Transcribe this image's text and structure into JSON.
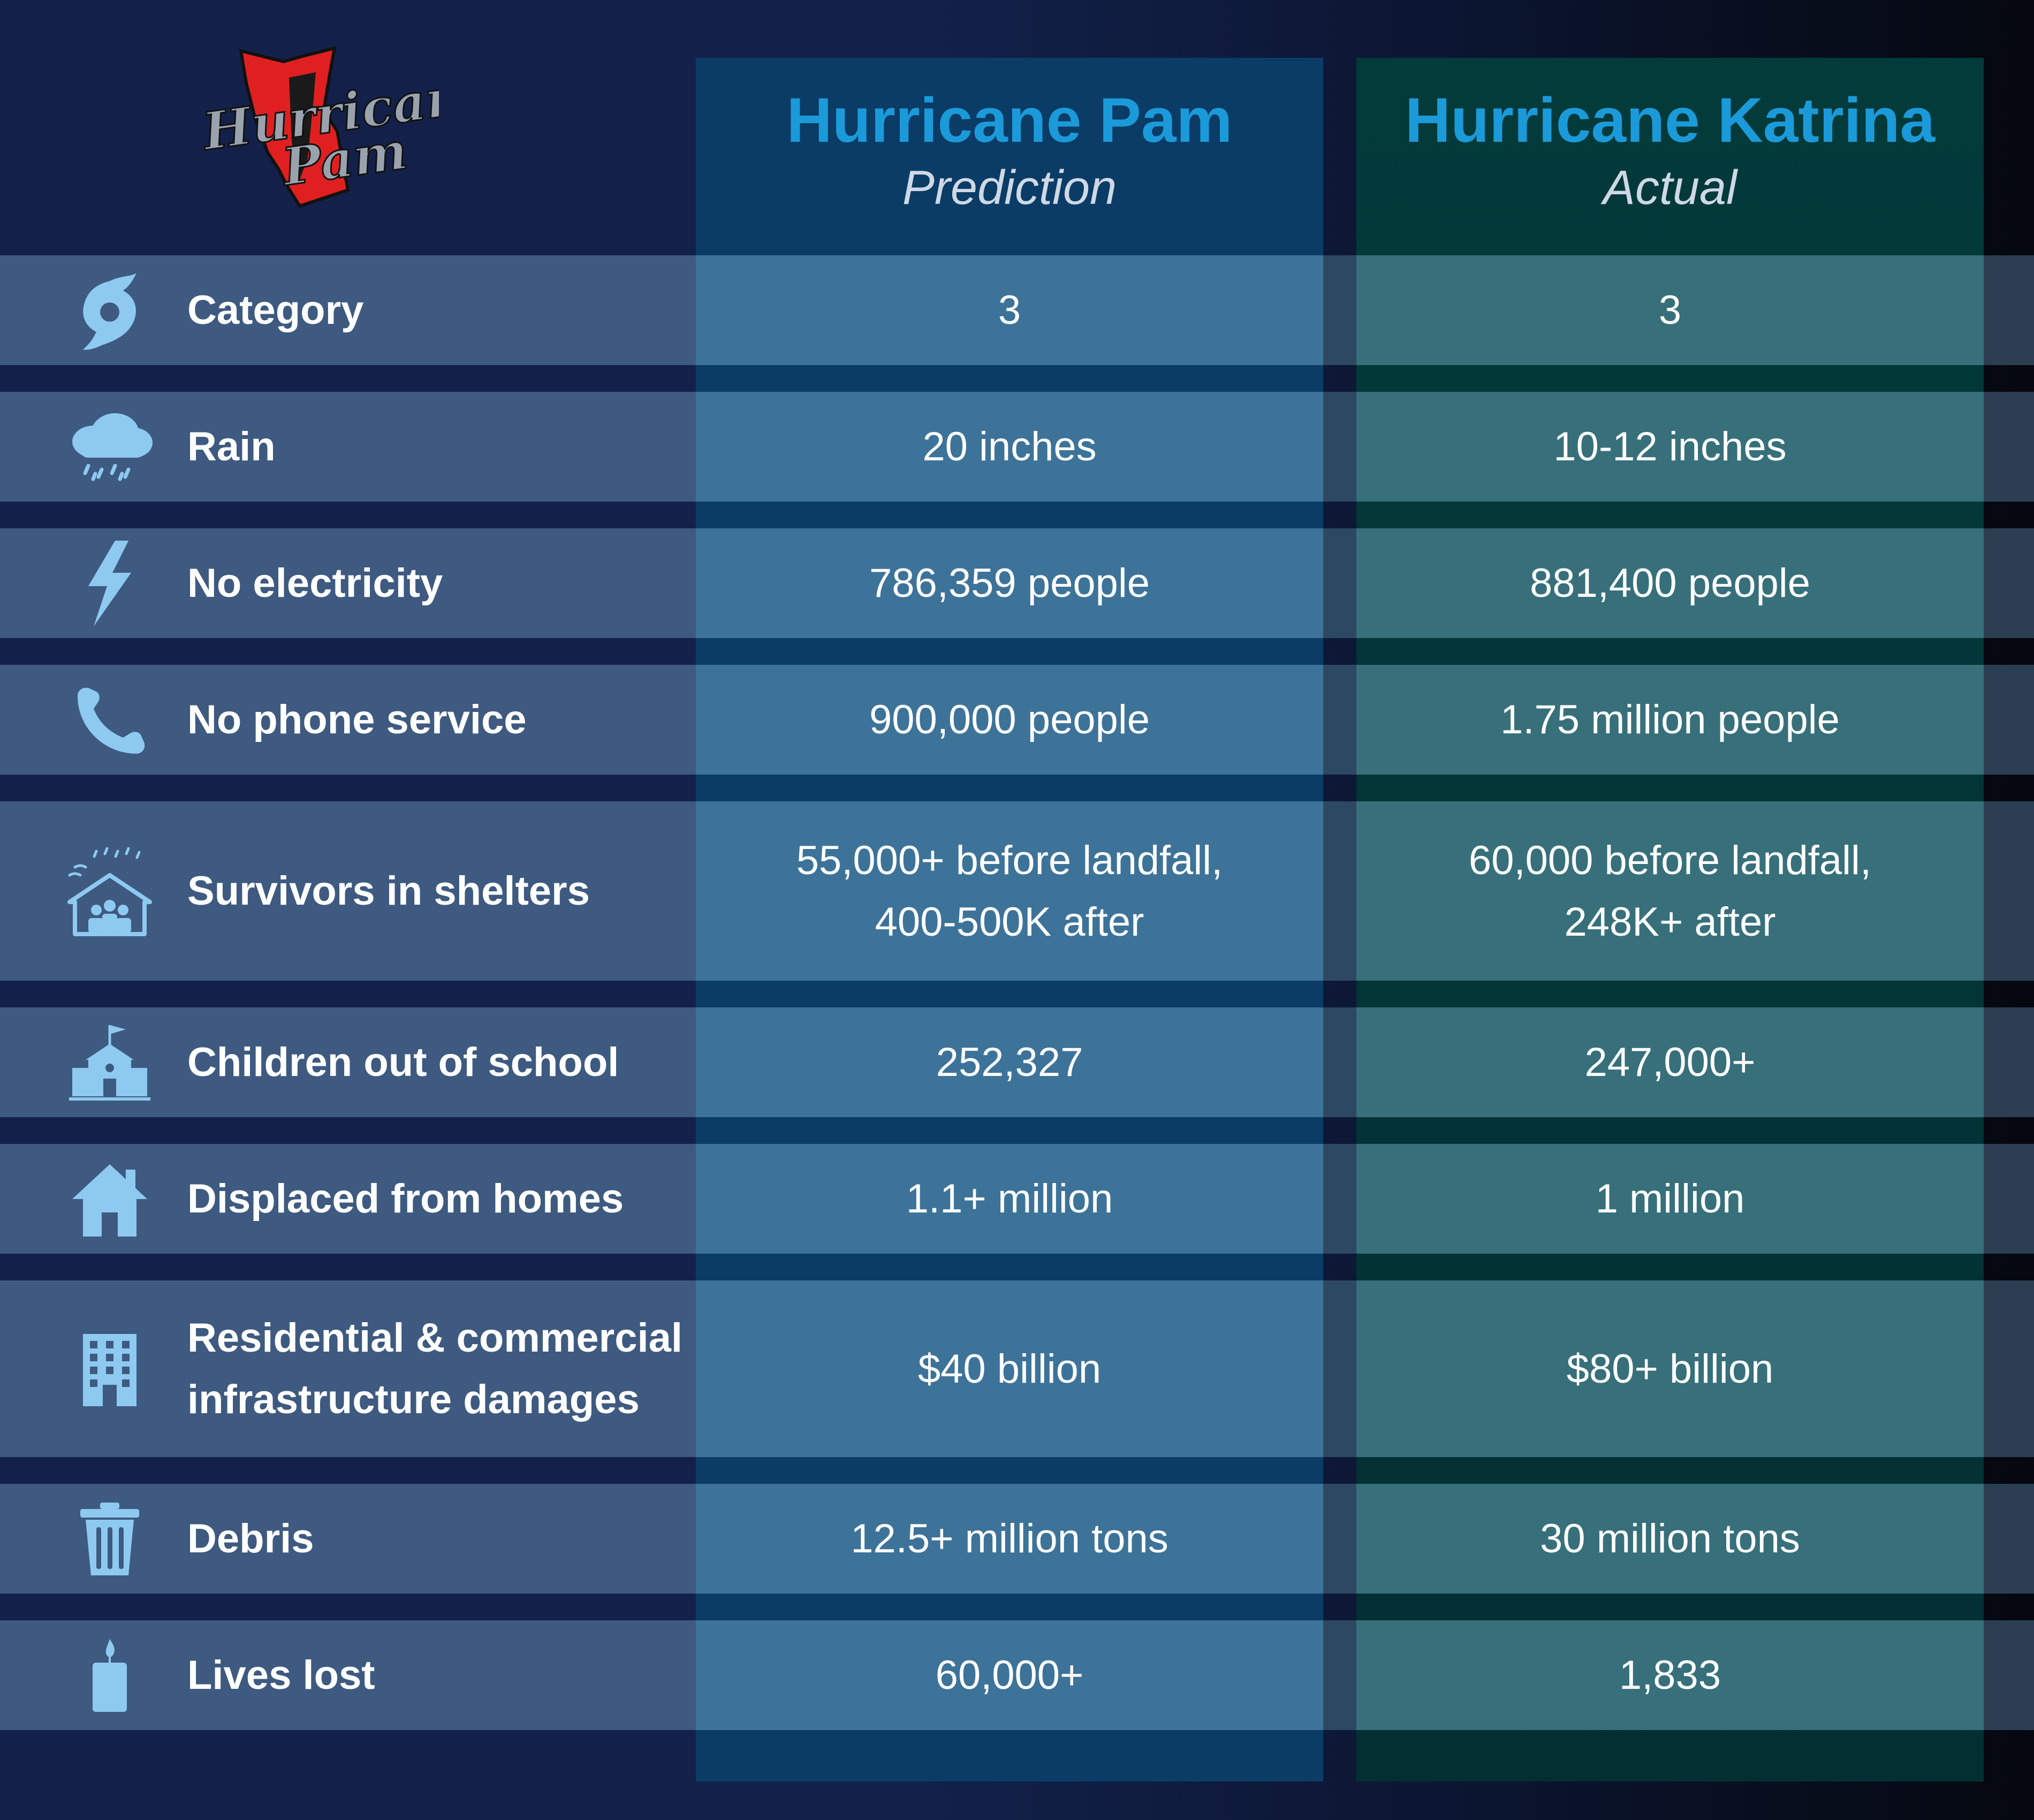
{
  "logo": {
    "text_line1": "Hurricane",
    "text_line2": "Pam"
  },
  "columns": [
    {
      "title": "Hurricane Pam",
      "subtitle": "Prediction"
    },
    {
      "title": "Hurricane Katrina",
      "subtitle": "Actual"
    }
  ],
  "rows": [
    {
      "icon": "hurricane-icon",
      "label": "Category",
      "pam": "3",
      "katrina": "3"
    },
    {
      "icon": "rain-cloud-icon",
      "label": "Rain",
      "pam": "20 inches",
      "katrina": "10-12 inches"
    },
    {
      "icon": "lightning-bolt-icon",
      "label": "No electricity",
      "pam": "786,359 people",
      "katrina": "881,400 people"
    },
    {
      "icon": "phone-icon",
      "label": "No phone service",
      "pam": "900,000 people",
      "katrina": "1.75 million people"
    },
    {
      "icon": "shelter-icon",
      "label": "Survivors in shelters",
      "pam_line1": "55,000+ before landfall,",
      "pam_line2": "400-500K after",
      "katrina_line1": "60,000 before landfall,",
      "katrina_line2": "248K+ after"
    },
    {
      "icon": "school-icon",
      "label": "Children out of school",
      "pam": "252,327",
      "katrina": "247,000+"
    },
    {
      "icon": "house-icon",
      "label": "Displaced from homes",
      "pam": "1.1+ million",
      "katrina": "1 million"
    },
    {
      "icon": "building-icon",
      "label_line1": "Residential & commercial",
      "label_line2": "infrastructure damages",
      "pam": "$40 billion",
      "katrina": "$80+ billion"
    },
    {
      "icon": "trash-can-icon",
      "label": "Debris",
      "pam": "12.5+ million tons",
      "katrina": "30 million tons"
    },
    {
      "icon": "candle-icon",
      "label": "Lives lost",
      "pam": "60,000+",
      "katrina": "1,833"
    }
  ],
  "colors": {
    "title_blue": "#1b9ad9",
    "icon_blue": "#8ec9f0",
    "logo_red": "#e02020"
  }
}
